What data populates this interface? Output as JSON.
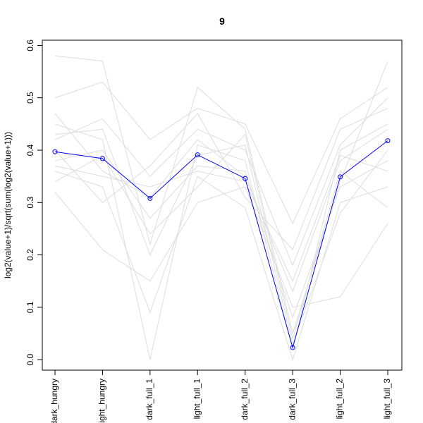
{
  "chart_data": {
    "type": "line",
    "title": "9",
    "y_label": "log2(value+1)/sqrt(sum(log2(value+1)))",
    "categories": [
      "dark_hungry",
      "light_hungry",
      "dark_full_1",
      "light_full_1",
      "dark_full_2",
      "dark_full_3",
      "light_full_2",
      "light_full_3"
    ],
    "ylim": [
      -0.02,
      0.61
    ],
    "yticks": [
      {
        "value": 0,
        "label": "0.0"
      },
      0.1,
      0.2,
      0.3,
      0.4,
      0.5,
      0.6
    ],
    "series": [
      {
        "color": "#dddddd",
        "values": [
          0.58,
          0.57,
          0.22,
          0.52,
          0.44,
          0.05,
          0.34,
          0.57
        ]
      },
      {
        "color": "#dddddd",
        "values": [
          0.32,
          0.21,
          0.15,
          0.3,
          0.33,
          0.1,
          0.12,
          0.26
        ]
      },
      {
        "color": "#dddddd",
        "values": [
          0.45,
          0.42,
          0.0,
          0.41,
          0.38,
          0.02,
          0.4,
          0.45
        ]
      },
      {
        "color": "#dddddd",
        "values": [
          0.5,
          0.53,
          0.42,
          0.48,
          0.45,
          0.26,
          0.46,
          0.52
        ]
      },
      {
        "color": "#dddddd",
        "values": [
          0.36,
          0.33,
          0.09,
          0.35,
          0.29,
          0.0,
          0.3,
          0.33
        ]
      },
      {
        "color": "#dddddd",
        "values": [
          0.42,
          0.46,
          0.35,
          0.44,
          0.4,
          0.18,
          0.41,
          0.5
        ]
      },
      {
        "color": "#dddddd",
        "values": [
          0.38,
          0.4,
          0.27,
          0.37,
          0.36,
          0.08,
          0.33,
          0.38
        ]
      },
      {
        "color": "#dddddd",
        "values": [
          0.47,
          0.36,
          0.31,
          0.42,
          0.35,
          0.13,
          0.38,
          0.44
        ]
      },
      {
        "color": "#dddddd",
        "values": [
          0.34,
          0.39,
          0.24,
          0.33,
          0.43,
          0.04,
          0.36,
          0.29
        ]
      },
      {
        "color": "#dddddd",
        "values": [
          0.4,
          0.3,
          0.37,
          0.47,
          0.31,
          0.21,
          0.44,
          0.48
        ]
      },
      {
        "color": "#dddddd",
        "values": [
          0.43,
          0.44,
          0.2,
          0.39,
          0.41,
          0.03,
          0.28,
          0.4
        ]
      },
      {
        "color": "#dddddd",
        "values": [
          0.37,
          0.35,
          0.33,
          0.36,
          0.34,
          0.15,
          0.39,
          0.36
        ]
      },
      {
        "color": "#0000ff",
        "values": [
          0.397,
          0.384,
          0.308,
          0.391,
          0.346,
          0.023,
          0.349,
          0.418
        ]
      }
    ]
  }
}
